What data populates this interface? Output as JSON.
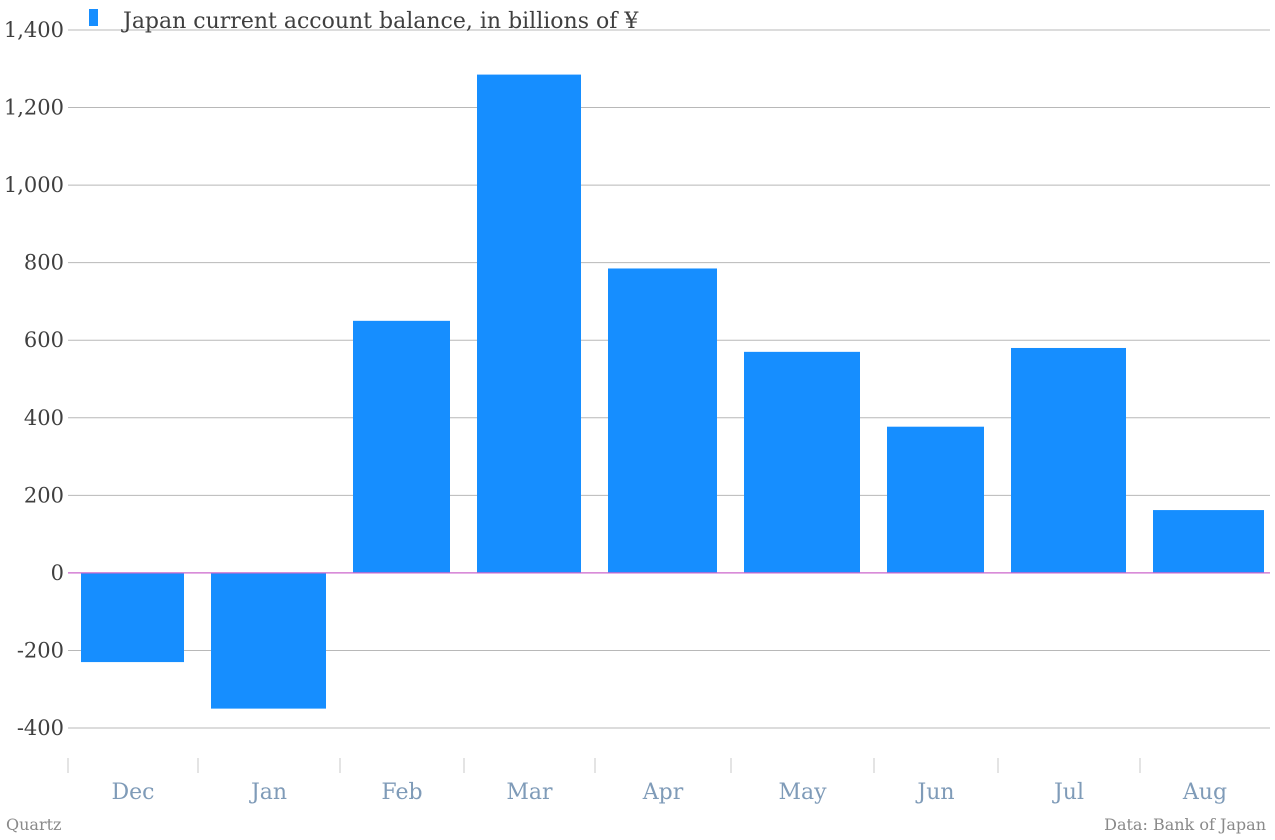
{
  "chart_data": {
    "type": "bar",
    "categories": [
      "Dec",
      "Jan",
      "Feb",
      "Mar",
      "Apr",
      "May",
      "Jun",
      "Jul",
      "Aug"
    ],
    "series": [
      {
        "name": "Japan current account balance, in billions of ¥",
        "values": [
          -230,
          -350,
          650,
          1285,
          785,
          570,
          377,
          580,
          162
        ]
      }
    ],
    "ylim": [
      -400,
      1400
    ],
    "yticks": [
      1400,
      1200,
      1000,
      800,
      600,
      400,
      200,
      0,
      -200,
      -400
    ],
    "ytick_labels": [
      "1,400",
      "1,200",
      "1,000",
      "800",
      "600",
      "400",
      "200",
      "0",
      "-200",
      "-400"
    ],
    "grid": true,
    "legend_position": "top-left",
    "colors": {
      "bar": "#168eff",
      "zero_line": "#cc66cc",
      "grid": "#b8b8b8",
      "x_labels": "#7f9bb8"
    }
  },
  "footer": {
    "left": "Quartz",
    "right": "Data: Bank of Japan"
  }
}
